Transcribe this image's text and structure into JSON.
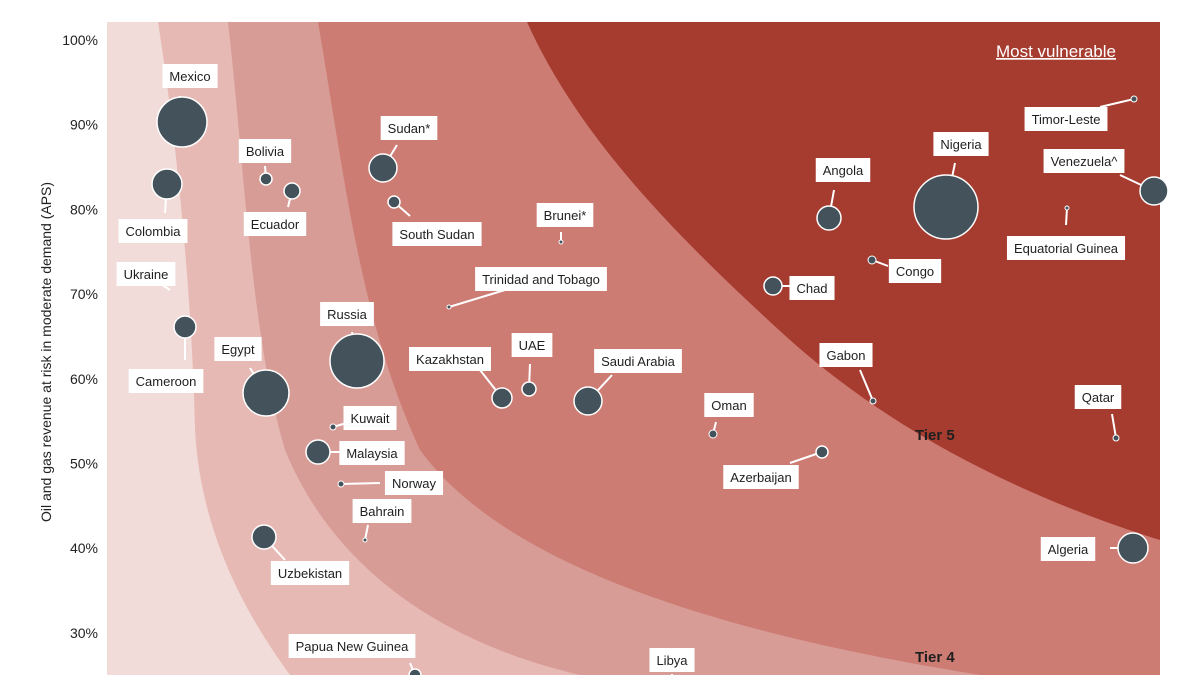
{
  "chart_data": {
    "type": "scatter",
    "title": "",
    "ylabel": "Oil and gas revenue at  risk in moderate demand (APS)",
    "xlabel": "",
    "ylim": [
      25,
      100
    ],
    "yticks": [
      "100%",
      "90%",
      "80%",
      "70%",
      "60%",
      "50%",
      "40%",
      "30%"
    ],
    "annotations": {
      "most_vulnerable": "Most vulnerable",
      "tier5": "Tier 5",
      "tier4": "Tier 4"
    },
    "colors": {
      "zone1": "#f2dcd9",
      "zone2": "#e7b9b4",
      "zone3": "#d89c96",
      "zone4": "#cd7c74",
      "zone5": "#a63b2f",
      "bubble": "#44525b",
      "label_bg": "#ffffff"
    },
    "points": [
      {
        "label": "Mexico",
        "y": 90.2,
        "size": 3
      },
      {
        "label": "Colombia",
        "y": 83,
        "size": 1.5
      },
      {
        "label": "Bolivia",
        "y": 83.5,
        "size": 0.5
      },
      {
        "label": "Ecuador",
        "y": 82,
        "size": 0.7
      },
      {
        "label": "Sudan*",
        "y": 85,
        "size": 1.4
      },
      {
        "label": "South Sudan",
        "y": 80.7,
        "size": 0.6
      },
      {
        "label": "Brunei*",
        "y": 76.2,
        "size": 0.1
      },
      {
        "label": "Ukraine",
        "y": 67.5,
        "size": 1.4
      },
      {
        "label": "Cameroon",
        "y": 66.3,
        "size": 1.0
      },
      {
        "label": "Trinidad and Tobago",
        "y": 68.5,
        "size": 0.1
      },
      {
        "label": "Russia",
        "y": 62,
        "size": 4
      },
      {
        "label": "Egypt",
        "y": 58.5,
        "size": 3
      },
      {
        "label": "Kazakhstan",
        "y": 57.5,
        "size": 1.0
      },
      {
        "label": "UAE",
        "y": 58.5,
        "size": 0.6
      },
      {
        "label": "Saudi Arabia",
        "y": 57.3,
        "size": 1.8
      },
      {
        "label": "Kuwait",
        "y": 54.3,
        "size": 0.2
      },
      {
        "label": "Malaysia",
        "y": 51.5,
        "size": 1.6
      },
      {
        "label": "Norway",
        "y": 47.7,
        "size": 0.3
      },
      {
        "label": "Bahrain",
        "y": 41,
        "size": 0.1
      },
      {
        "label": "Uzbekistan",
        "y": 41.4,
        "size": 1.5
      },
      {
        "label": "Papua New Guinea",
        "y": 25,
        "size": 0.5
      },
      {
        "label": "Libya",
        "y": 24,
        "size": 0.5
      },
      {
        "label": "Oman",
        "y": 53.5,
        "size": 0.4
      },
      {
        "label": "Azerbaijan",
        "y": 51.5,
        "size": 0.6
      },
      {
        "label": "Angola",
        "y": 79,
        "size": 1.8
      },
      {
        "label": "Nigeria",
        "y": 80,
        "size": 6
      },
      {
        "label": "Chad",
        "y": 71,
        "size": 1.0
      },
      {
        "label": "Congo",
        "y": 74,
        "size": 0.4
      },
      {
        "label": "Gabon",
        "y": 57.5,
        "size": 0.1
      },
      {
        "label": "Timor-Leste",
        "y": 93,
        "size": 0.1
      },
      {
        "label": "Venezuela^",
        "y": 82.2,
        "size": 1.5
      },
      {
        "label": "Equatorial Guinea",
        "y": 80.3,
        "size": 0.1
      },
      {
        "label": "Qatar",
        "y": 53,
        "size": 0.2
      },
      {
        "label": "Algeria",
        "y": 40,
        "size": 2.3
      }
    ]
  }
}
